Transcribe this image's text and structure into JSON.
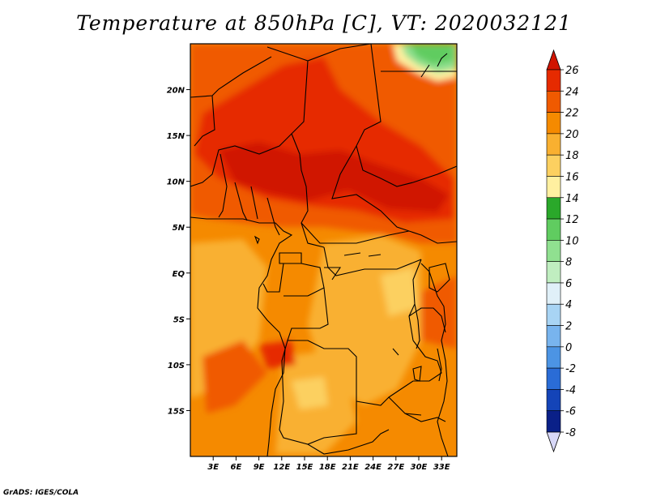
{
  "title": "Temperature at 850hPa [C], VT: 2020032121",
  "footer": "GrADS: IGES/COLA",
  "map": {
    "lon_range": [
      0,
      35
    ],
    "lat_range": [
      -20,
      25
    ],
    "x_ticks": [
      "3E",
      "6E",
      "9E",
      "12E",
      "15E",
      "18E",
      "21E",
      "24E",
      "27E",
      "30E",
      "33E"
    ],
    "y_ticks": [
      "20N",
      "15N",
      "10N",
      "5N",
      "EQ",
      "5S",
      "10S",
      "15S"
    ]
  },
  "colorbar": {
    "labels": [
      "26",
      "24",
      "22",
      "20",
      "18",
      "16",
      "14",
      "12",
      "10",
      "8",
      "6",
      "4",
      "2",
      "0",
      "-2",
      "-4",
      "-6",
      "-8"
    ],
    "colors": [
      "#d01400",
      "#e62a00",
      "#f05a00",
      "#f58a00",
      "#f9b030",
      "#fcd060",
      "#fff0a0",
      "#2aa82a",
      "#60cc60",
      "#90e090",
      "#c0eec0",
      "#e0f0f8",
      "#a8d4f4",
      "#78b4ee",
      "#4c94e4",
      "#2a6cd6",
      "#1444b8",
      "#0a2088",
      "#000050"
    ],
    "under_color": "#d8d8f8"
  }
}
